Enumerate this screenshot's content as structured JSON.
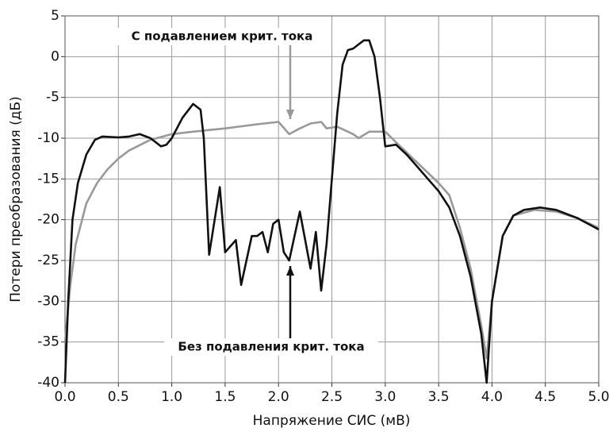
{
  "chart_data": {
    "type": "line",
    "xlabel": "Напряжение СИС (мВ)",
    "ylabel": "Потери преобразования (дБ)",
    "xlim": [
      0,
      5
    ],
    "ylim": [
      -40,
      5
    ],
    "xticks": [
      {
        "value": 0,
        "label": "0.0"
      },
      0.5,
      {
        "value": 1,
        "label": "1.0"
      },
      1.5,
      {
        "value": 2,
        "label": "2.0"
      },
      2.5,
      {
        "value": 3,
        "label": "3.0"
      },
      3.5,
      {
        "value": 4,
        "label": "4.0"
      },
      4.5,
      {
        "value": 5,
        "label": "5.0"
      }
    ],
    "yticks": [
      -40,
      -35,
      -30,
      -25,
      -20,
      -15,
      -10,
      -5,
      0,
      5
    ],
    "grid": true,
    "series": [
      {
        "name": "С подавлением крит. тока",
        "color": "#999999",
        "x": [
          0.0,
          0.05,
          0.1,
          0.2,
          0.3,
          0.4,
          0.5,
          0.6,
          0.8,
          1.0,
          1.2,
          1.5,
          1.8,
          2.0,
          2.1,
          2.2,
          2.3,
          2.4,
          2.45,
          2.55,
          2.7,
          2.75,
          2.85,
          3.0,
          3.1,
          3.3,
          3.5,
          3.6,
          3.7,
          3.8,
          3.9,
          3.95,
          4.0,
          4.1,
          4.2,
          4.4,
          4.6,
          4.8,
          5.0
        ],
        "values": [
          -35,
          -28,
          -23,
          -18,
          -15.5,
          -13.8,
          -12.5,
          -11.5,
          -10.2,
          -9.5,
          -9.2,
          -8.8,
          -8.3,
          -8,
          -9.5,
          -8.8,
          -8.2,
          -8,
          -8.8,
          -8.6,
          -9.5,
          -10,
          -9.2,
          -9.2,
          -10.5,
          -13,
          -15.5,
          -17,
          -21,
          -26,
          -33,
          -37,
          -30,
          -22,
          -19.5,
          -18.8,
          -19,
          -19.8,
          -21
        ]
      },
      {
        "name": "Без подавления крит. тока",
        "color": "#111111",
        "x": [
          0.0,
          0.03,
          0.07,
          0.12,
          0.2,
          0.28,
          0.35,
          0.5,
          0.6,
          0.7,
          0.8,
          0.9,
          0.95,
          1.0,
          1.1,
          1.2,
          1.27,
          1.3,
          1.35,
          1.45,
          1.5,
          1.6,
          1.65,
          1.75,
          1.8,
          1.85,
          1.9,
          1.95,
          2.0,
          2.05,
          2.1,
          2.2,
          2.3,
          2.35,
          2.4,
          2.45,
          2.5,
          2.55,
          2.6,
          2.65,
          2.7,
          2.75,
          2.8,
          2.85,
          2.9,
          2.95,
          3.0,
          3.1,
          3.2,
          3.3,
          3.4,
          3.5,
          3.6,
          3.7,
          3.8,
          3.9,
          3.95,
          4.0,
          4.1,
          4.2,
          4.3,
          4.45,
          4.6,
          4.8,
          5.0
        ],
        "values": [
          -40,
          -30,
          -20,
          -15.5,
          -12,
          -10.2,
          -9.8,
          -9.9,
          -9.8,
          -9.5,
          -10,
          -11,
          -10.8,
          -10,
          -7.5,
          -5.8,
          -6.5,
          -10,
          -24.3,
          -16,
          -24,
          -22.5,
          -28,
          -22,
          -22,
          -21.5,
          -24,
          -20.5,
          -20,
          -24,
          -25,
          -19,
          -26,
          -21.5,
          -28.7,
          -23,
          -15,
          -7,
          -1,
          0.8,
          1,
          1.5,
          2,
          2,
          0,
          -5,
          -11,
          -10.8,
          -12,
          -13.5,
          -15,
          -16.5,
          -18.5,
          -22,
          -27,
          -34,
          -40,
          -30,
          -22,
          -19.5,
          -18.8,
          -18.5,
          -18.8,
          -19.8,
          -21.2
        ]
      }
    ]
  }
}
